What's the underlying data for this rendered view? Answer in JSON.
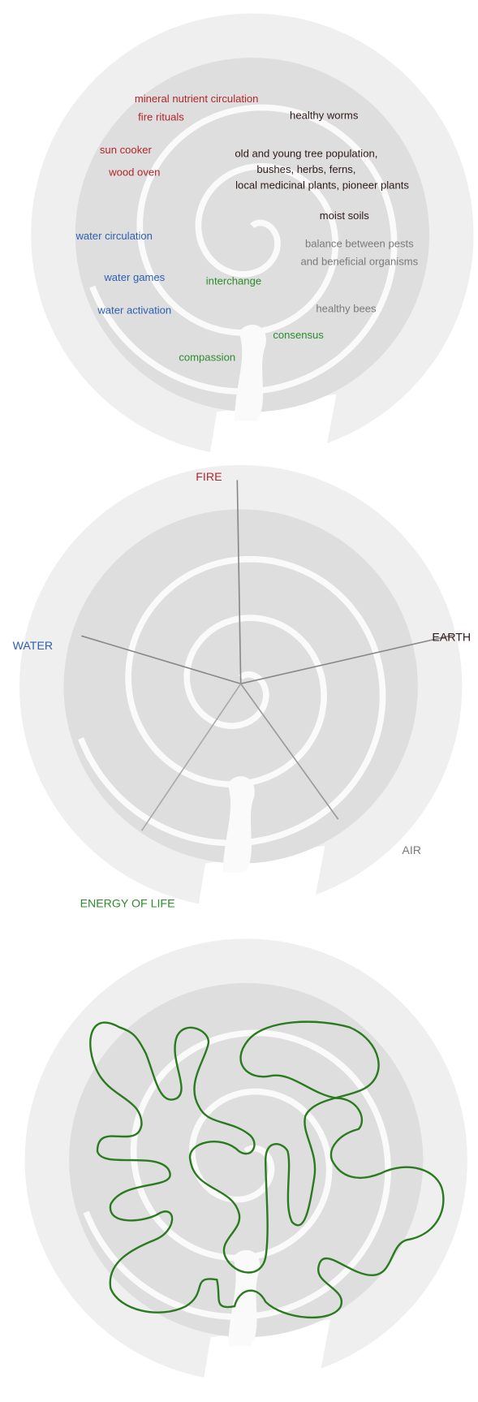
{
  "spiral_labels": [
    "mineral nutrient circulation",
    "fire rituals",
    "sun cooker",
    "wood oven",
    "healthy worms",
    "old and young tree population,",
    "bushes, herbs, ferns,",
    "local medicinal plants, pioneer plants",
    "moist soils",
    "balance between pests",
    "and beneficial organisms",
    "water circulation",
    "water games",
    "interchange",
    "water activation",
    "healthy bees",
    "consensus",
    "compassion"
  ],
  "element_labels": [
    "FIRE",
    "EARTH",
    "WATER",
    "AIR",
    "ENERGY OF LIFE"
  ]
}
